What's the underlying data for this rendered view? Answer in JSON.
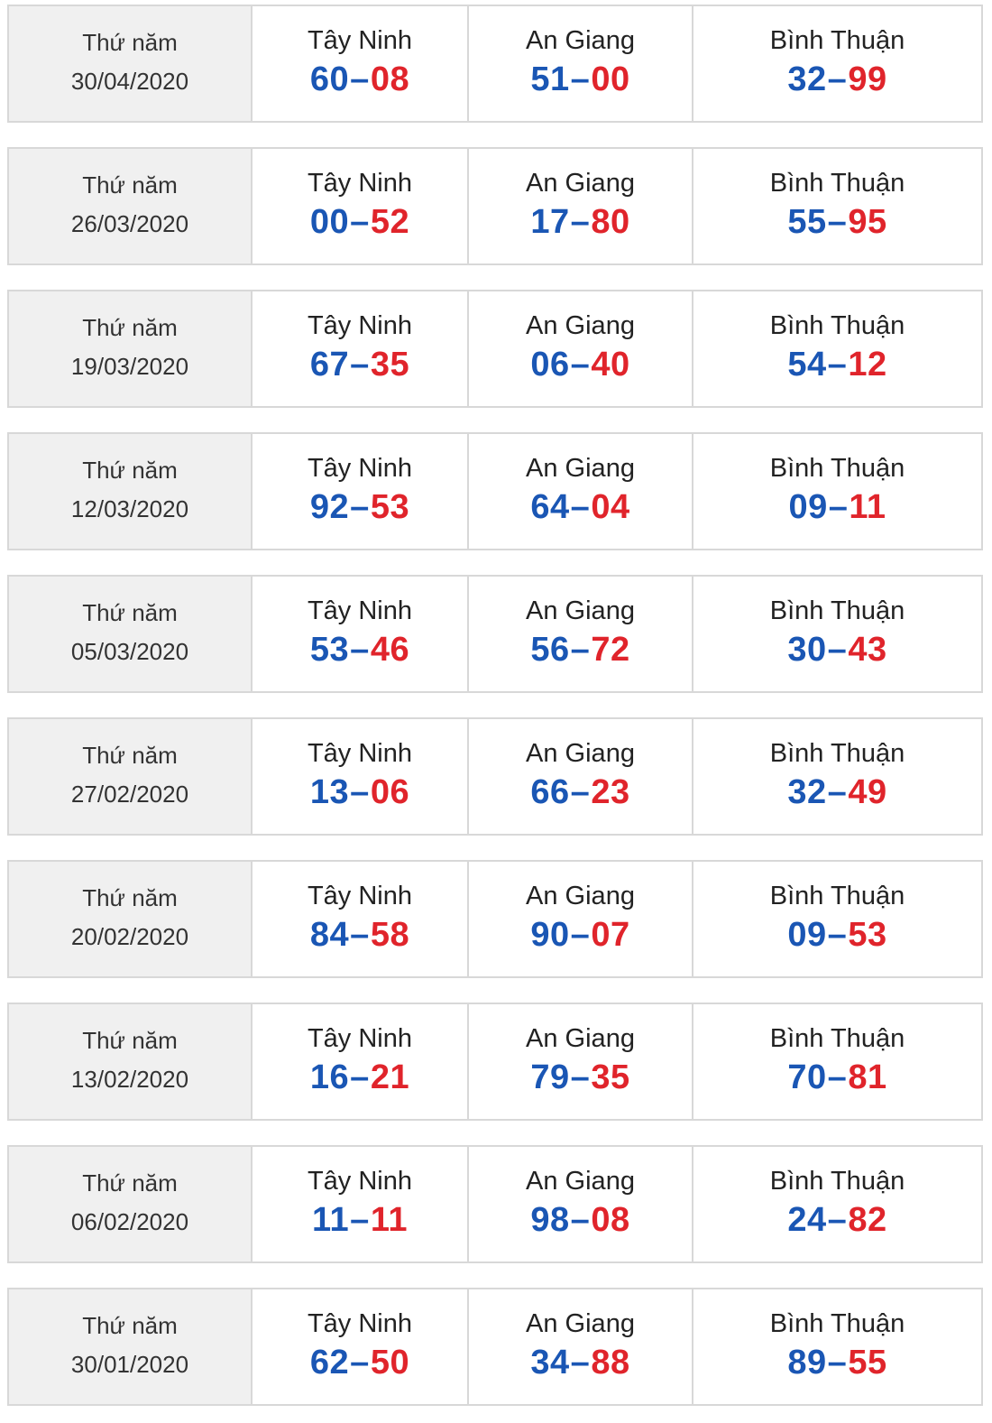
{
  "colors": {
    "first": "#1a56b4",
    "second": "#e0242b"
  },
  "separator": "–",
  "rows": [
    {
      "weekday": "Thứ năm",
      "date": "30/04/2020",
      "provinces": [
        {
          "name": "Tây Ninh",
          "a": "60",
          "b": "08"
        },
        {
          "name": "An Giang",
          "a": "51",
          "b": "00"
        },
        {
          "name": "Bình Thuận",
          "a": "32",
          "b": "99"
        }
      ]
    },
    {
      "weekday": "Thứ năm",
      "date": "26/03/2020",
      "provinces": [
        {
          "name": "Tây Ninh",
          "a": "00",
          "b": "52"
        },
        {
          "name": "An Giang",
          "a": "17",
          "b": "80"
        },
        {
          "name": "Bình Thuận",
          "a": "55",
          "b": "95"
        }
      ]
    },
    {
      "weekday": "Thứ năm",
      "date": "19/03/2020",
      "provinces": [
        {
          "name": "Tây Ninh",
          "a": "67",
          "b": "35"
        },
        {
          "name": "An Giang",
          "a": "06",
          "b": "40"
        },
        {
          "name": "Bình Thuận",
          "a": "54",
          "b": "12"
        }
      ]
    },
    {
      "weekday": "Thứ năm",
      "date": "12/03/2020",
      "provinces": [
        {
          "name": "Tây Ninh",
          "a": "92",
          "b": "53"
        },
        {
          "name": "An Giang",
          "a": "64",
          "b": "04"
        },
        {
          "name": "Bình Thuận",
          "a": "09",
          "b": "11"
        }
      ]
    },
    {
      "weekday": "Thứ năm",
      "date": "05/03/2020",
      "provinces": [
        {
          "name": "Tây Ninh",
          "a": "53",
          "b": "46"
        },
        {
          "name": "An Giang",
          "a": "56",
          "b": "72"
        },
        {
          "name": "Bình Thuận",
          "a": "30",
          "b": "43"
        }
      ]
    },
    {
      "weekday": "Thứ năm",
      "date": "27/02/2020",
      "provinces": [
        {
          "name": "Tây Ninh",
          "a": "13",
          "b": "06"
        },
        {
          "name": "An Giang",
          "a": "66",
          "b": "23"
        },
        {
          "name": "Bình Thuận",
          "a": "32",
          "b": "49"
        }
      ]
    },
    {
      "weekday": "Thứ năm",
      "date": "20/02/2020",
      "provinces": [
        {
          "name": "Tây Ninh",
          "a": "84",
          "b": "58"
        },
        {
          "name": "An Giang",
          "a": "90",
          "b": "07"
        },
        {
          "name": "Bình Thuận",
          "a": "09",
          "b": "53"
        }
      ]
    },
    {
      "weekday": "Thứ năm",
      "date": "13/02/2020",
      "provinces": [
        {
          "name": "Tây Ninh",
          "a": "16",
          "b": "21"
        },
        {
          "name": "An Giang",
          "a": "79",
          "b": "35"
        },
        {
          "name": "Bình Thuận",
          "a": "70",
          "b": "81"
        }
      ]
    },
    {
      "weekday": "Thứ năm",
      "date": "06/02/2020",
      "provinces": [
        {
          "name": "Tây Ninh",
          "a": "11",
          "b": "11"
        },
        {
          "name": "An Giang",
          "a": "98",
          "b": "08"
        },
        {
          "name": "Bình Thuận",
          "a": "24",
          "b": "82"
        }
      ]
    },
    {
      "weekday": "Thứ năm",
      "date": "30/01/2020",
      "provinces": [
        {
          "name": "Tây Ninh",
          "a": "62",
          "b": "50"
        },
        {
          "name": "An Giang",
          "a": "34",
          "b": "88"
        },
        {
          "name": "Bình Thuận",
          "a": "89",
          "b": "55"
        }
      ]
    }
  ]
}
